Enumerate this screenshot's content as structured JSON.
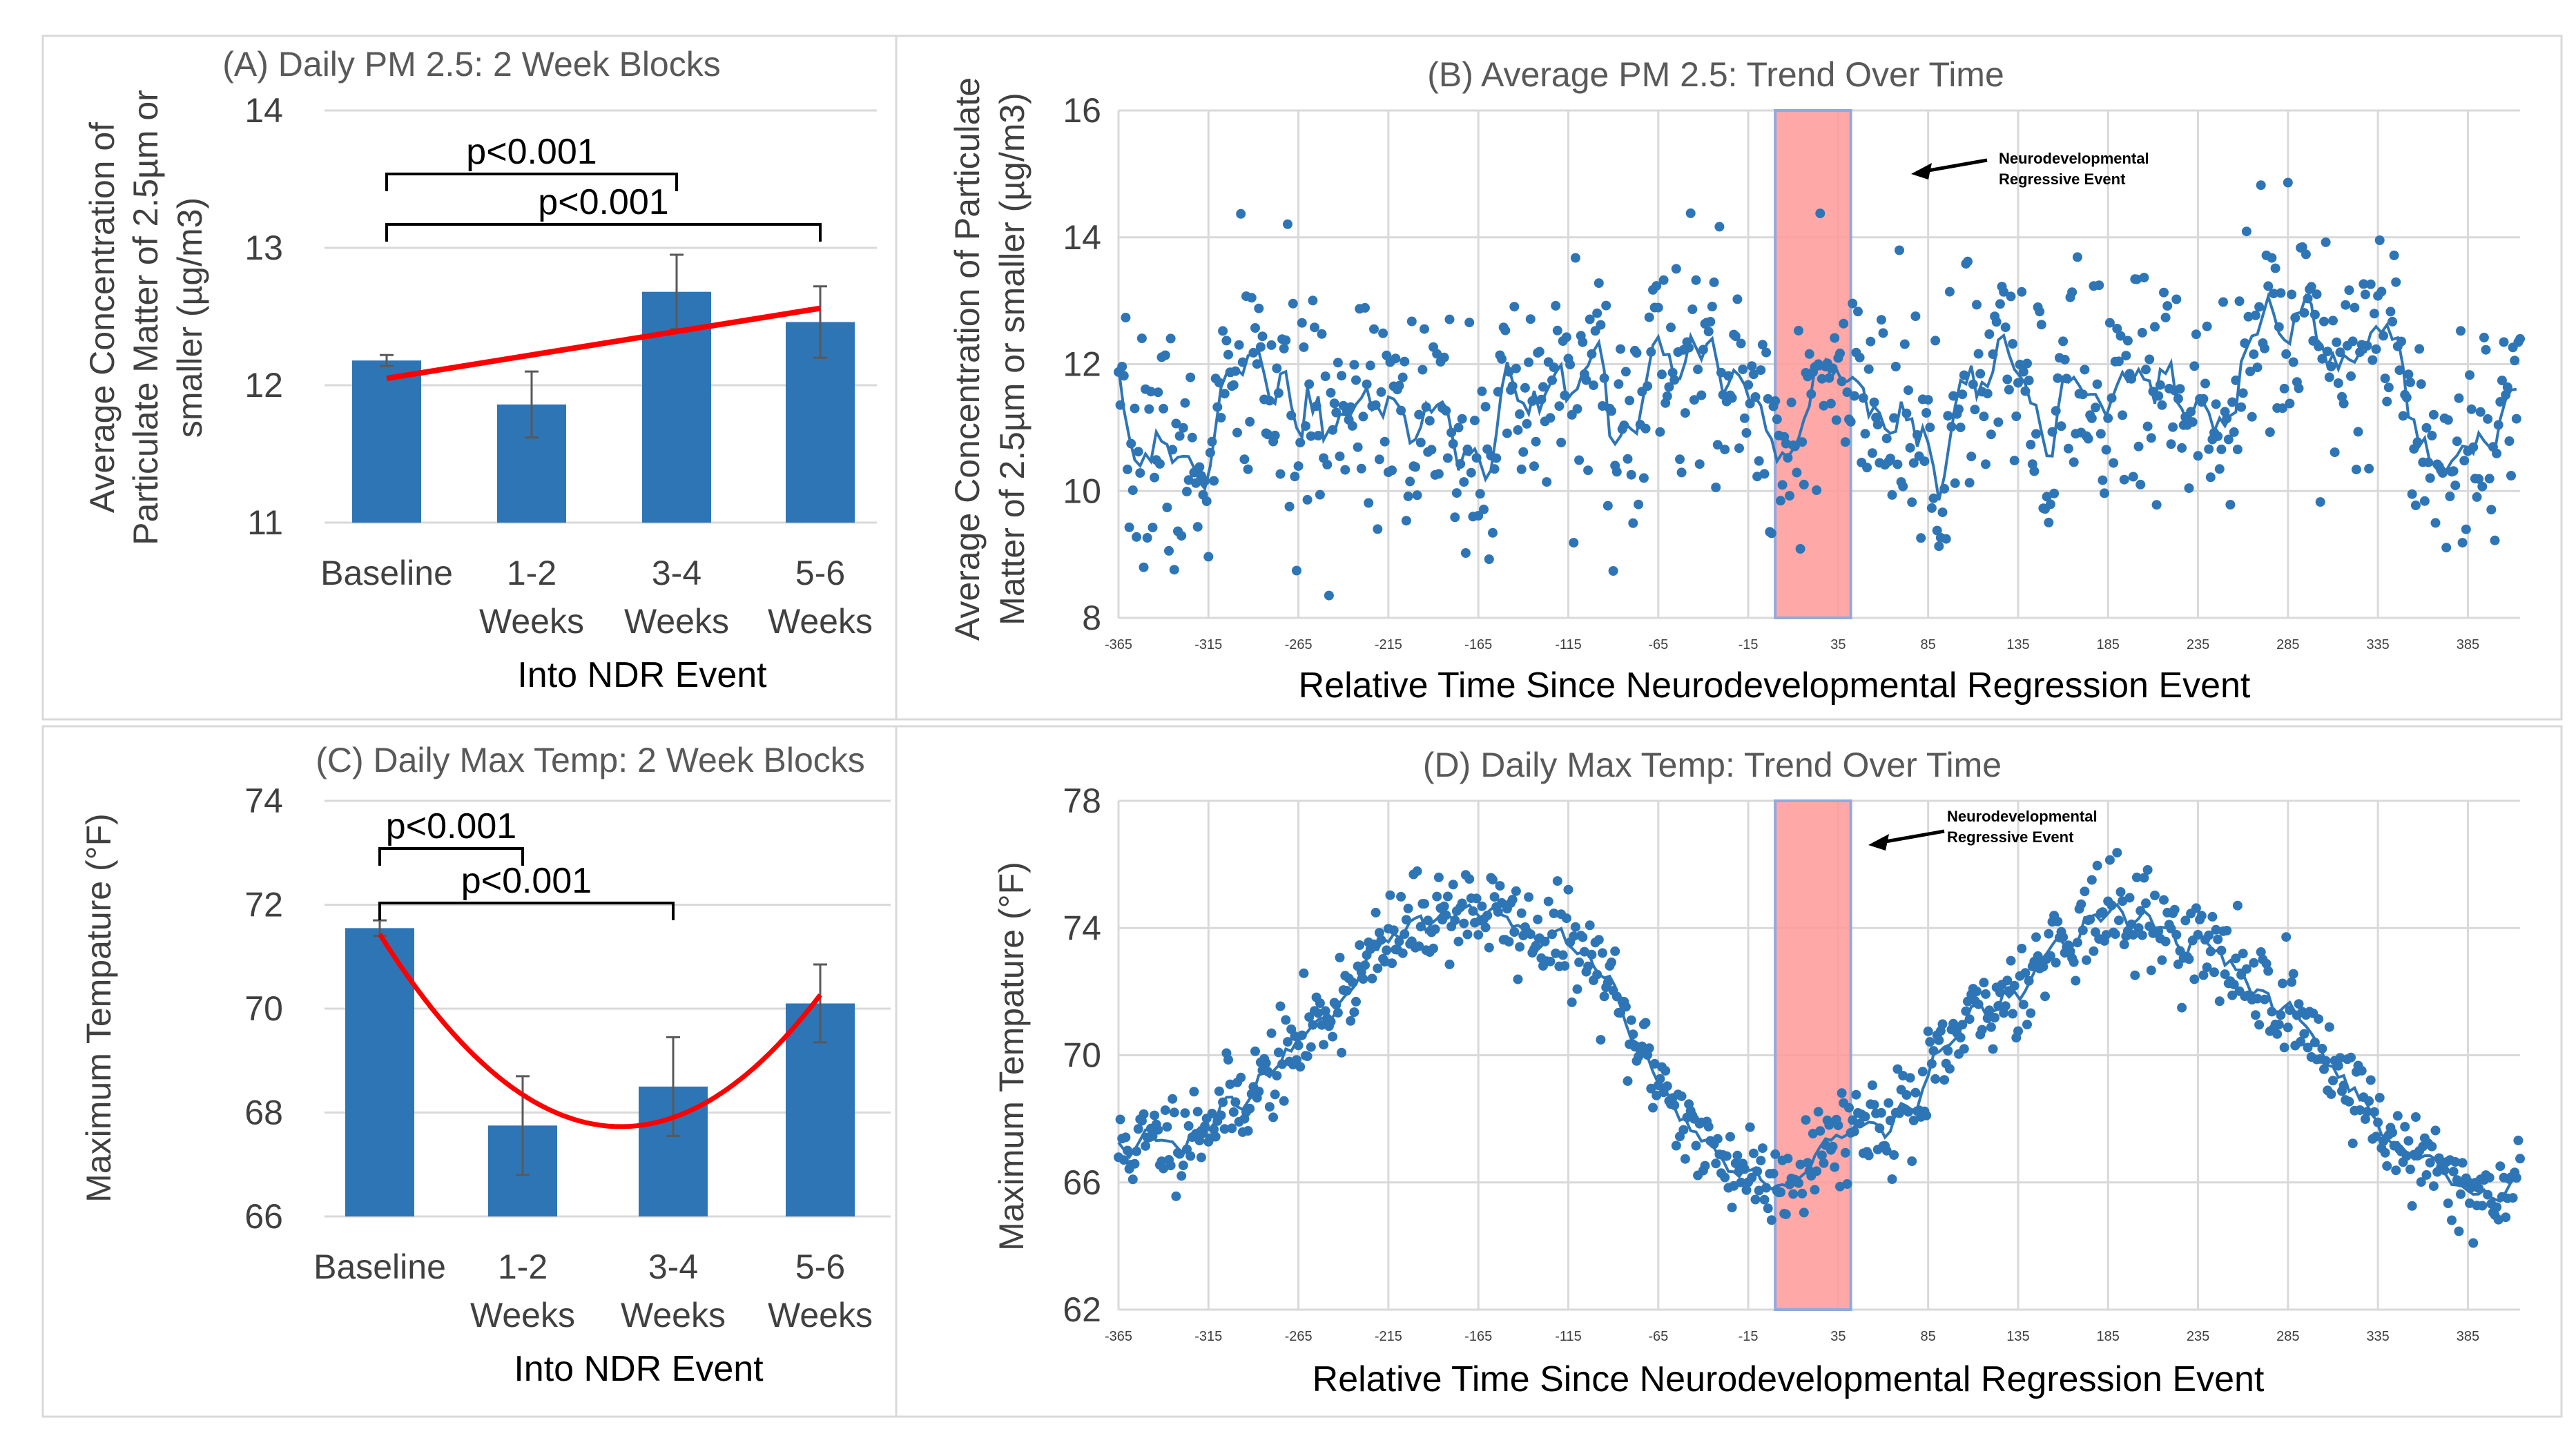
{
  "chart_data": [
    {
      "id": "A",
      "type": "bar",
      "title": "(A) Daily PM 2.5: 2 Week Blocks",
      "ylabel": "Average Concentration of Particulate Matter of 2.5µm or smaller (µg/m3)",
      "ylabel_lines": [
        "Average Concentration of",
        "Particulate Matter of 2.5µm or",
        "smaller (µg/m3)"
      ],
      "xlabel": "Into NDR Event",
      "categories": [
        [
          "Baseline"
        ],
        [
          "1-2",
          "Weeks"
        ],
        [
          "3-4",
          "Weeks"
        ],
        [
          "5-6",
          "Weeks"
        ]
      ],
      "values": [
        12.18,
        11.86,
        12.68,
        12.46
      ],
      "errors": [
        0.04,
        0.24,
        0.27,
        0.26
      ],
      "ylim": [
        11,
        14
      ],
      "yticks": [
        "11",
        "12",
        "13",
        "14"
      ],
      "trendline": {
        "type": "linear",
        "start": 12.05,
        "end": 12.56
      },
      "brackets": [
        {
          "from": 0,
          "to": 2,
          "label": "p<0.001"
        },
        {
          "from": 0,
          "to": 3,
          "label": "p<0.001"
        }
      ],
      "bar_color": "#2E75B6",
      "trend_color": "#FF0000"
    },
    {
      "id": "B",
      "type": "scatter",
      "title": "(B) Average PM 2.5: Trend Over Time",
      "ylabel": "Average Concentration of Particulate Matter of 2.5µm or smaller (µg/m3)",
      "ylabel_lines": [
        "Average Concentration of Particulate",
        "Matter of 2.5µm or smaller (µg/m3)"
      ],
      "xlabel": "Relative Time Since Neurodevelopmental Regression Event",
      "xlim": [
        -365,
        414
      ],
      "ylim": [
        8,
        16
      ],
      "yticks": [
        "8",
        "10",
        "12",
        "14",
        "16"
      ],
      "xticks": [
        "-365",
        "-315",
        "-265",
        "-215",
        "-165",
        "-115",
        "-65",
        "-15",
        "35",
        "85",
        "135",
        "185",
        "235",
        "285",
        "335",
        "385"
      ],
      "grid": true,
      "seed": 7,
      "trend_knots": [
        [
          -365,
          10.5
        ],
        [
          -340,
          10.8
        ],
        [
          -320,
          10.0
        ],
        [
          -305,
          11.5
        ],
        [
          -290,
          12.1
        ],
        [
          -270,
          11.2
        ],
        [
          -250,
          10.9
        ],
        [
          -235,
          11.7
        ],
        [
          -215,
          11.8
        ],
        [
          -195,
          10.8
        ],
        [
          -175,
          11.0
        ],
        [
          -155,
          10.9
        ],
        [
          -135,
          11.1
        ],
        [
          -115,
          11.9
        ],
        [
          -100,
          11.8
        ],
        [
          -80,
          10.7
        ],
        [
          -65,
          12.1
        ],
        [
          -50,
          11.9
        ],
        [
          -35,
          12.0
        ],
        [
          -15,
          11.6
        ],
        [
          0,
          10.9
        ],
        [
          15,
          11.2
        ],
        [
          35,
          11.7
        ],
        [
          55,
          11.0
        ],
        [
          75,
          10.8
        ],
        [
          95,
          10.7
        ],
        [
          110,
          11.6
        ],
        [
          130,
          11.8
        ],
        [
          150,
          10.9
        ],
        [
          170,
          11.5
        ],
        [
          190,
          11.7
        ],
        [
          210,
          11.8
        ],
        [
          235,
          11.5
        ],
        [
          255,
          11.9
        ],
        [
          275,
          12.6
        ],
        [
          295,
          13.0
        ],
        [
          315,
          12.2
        ],
        [
          335,
          12.6
        ],
        [
          350,
          11.8
        ],
        [
          370,
          10.7
        ],
        [
          395,
          11.0
        ],
        [
          414,
          11.6
        ]
      ],
      "shade": {
        "x0": 0,
        "x1": 42,
        "color": "#FF9999",
        "label": "Neurodevelopmental Regressive Event",
        "label_lines": [
          "Neurodevelopmental",
          "Regressive Event"
        ]
      },
      "point_color": "#2E75B6"
    },
    {
      "id": "C",
      "type": "bar",
      "title": "(C) Daily Max Temp: 2 Week Blocks",
      "ylabel": "Maximum Tempature (°F)",
      "xlabel": "Into NDR Event",
      "categories": [
        [
          "Baseline"
        ],
        [
          "1-2",
          "Weeks"
        ],
        [
          "3-4",
          "Weeks"
        ],
        [
          "5-6",
          "Weeks"
        ]
      ],
      "values": [
        71.55,
        67.75,
        68.5,
        70.1
      ],
      "errors": [
        0.15,
        0.95,
        0.95,
        0.75
      ],
      "ylim": [
        66,
        74
      ],
      "yticks": [
        "66",
        "68",
        "70",
        "72",
        "74"
      ],
      "trendline": {
        "type": "polynomial",
        "points": [
          71.4,
          68.4,
          67.8,
          70.3
        ]
      },
      "brackets": [
        {
          "from": 0,
          "to": 1,
          "label": "p<0.001"
        },
        {
          "from": 0,
          "to": 2,
          "label": "p<0.001"
        }
      ],
      "bar_color": "#2E75B6",
      "trend_color": "#FF0000"
    },
    {
      "id": "D",
      "type": "scatter",
      "title": "(D) Daily Max Temp: Trend Over Time",
      "ylabel": "Maximum Tempature (°F)",
      "xlabel": "Relative Time Since Neurodevelopmental Regression Event",
      "xlim": [
        -365,
        414
      ],
      "ylim": [
        62,
        78
      ],
      "yticks": [
        "62",
        "66",
        "70",
        "74",
        "78"
      ],
      "xticks": [
        "-365",
        "-315",
        "-265",
        "-215",
        "-165",
        "-115",
        "-65",
        "-15",
        "35",
        "85",
        "135",
        "185",
        "235",
        "285",
        "335",
        "385"
      ],
      "grid": true,
      "seed": 11,
      "trend_knots": [
        [
          -365,
          67.0
        ],
        [
          -330,
          67.5
        ],
        [
          -300,
          68.5
        ],
        [
          -270,
          70.0
        ],
        [
          -240,
          72.0
        ],
        [
          -215,
          73.5
        ],
        [
          -190,
          74.5
        ],
        [
          -165,
          74.6
        ],
        [
          -140,
          74.0
        ],
        [
          -115,
          73.5
        ],
        [
          -95,
          72.5
        ],
        [
          -80,
          70.5
        ],
        [
          -60,
          69.0
        ],
        [
          -40,
          67.0
        ],
        [
          -20,
          66.5
        ],
        [
          0,
          66.0
        ],
        [
          20,
          66.8
        ],
        [
          40,
          67.8
        ],
        [
          60,
          68.0
        ],
        [
          80,
          68.5
        ],
        [
          100,
          70.5
        ],
        [
          120,
          71.5
        ],
        [
          140,
          72.5
        ],
        [
          160,
          73.8
        ],
        [
          185,
          74.5
        ],
        [
          210,
          74.2
        ],
        [
          235,
          73.5
        ],
        [
          260,
          72.5
        ],
        [
          285,
          71.5
        ],
        [
          300,
          70.5
        ],
        [
          320,
          69.0
        ],
        [
          340,
          67.5
        ],
        [
          360,
          66.5
        ],
        [
          380,
          66.0
        ],
        [
          400,
          65.5
        ],
        [
          414,
          66.5
        ]
      ],
      "shade": {
        "x0": 0,
        "x1": 42,
        "color": "#FF9999",
        "label": "Neurodevelopmental Regressive Event",
        "label_lines": [
          "Neurodevelopmental",
          "Regressive Event"
        ]
      },
      "point_color": "#2E75B6"
    }
  ]
}
